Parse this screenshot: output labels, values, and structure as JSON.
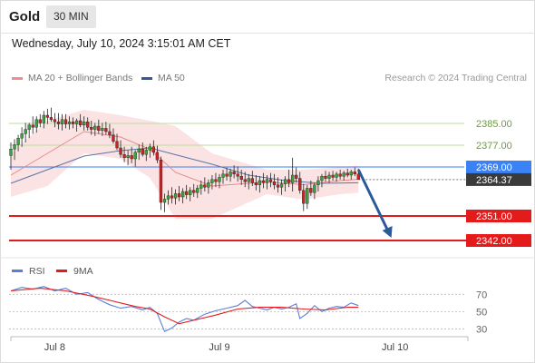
{
  "header": {
    "symbol": "Gold",
    "timeframe": "30 MIN"
  },
  "datetime": "Wednesday, July 10, 2024 3:15:01 AM CET",
  "legend": [
    {
      "label": "MA 20 + Bollinger Bands",
      "color": "#f08c8c"
    },
    {
      "label": "MA 50",
      "color": "#335a96"
    }
  ],
  "credit": "Research © 2024 Trading Central",
  "colors": {
    "pivot": "#3b82f6",
    "support": "#e31b1b",
    "resistance": "#b8dc9c",
    "last": "#3a3a3a",
    "arrow": "#2a5a9a",
    "up_candle": "#3aa33a",
    "down_candle": "#cc2222"
  },
  "chart_data": [
    {
      "type": "candlestick",
      "x_range": [
        0,
        115
      ],
      "ylim": [
        2337,
        2397
      ],
      "x_tick_labels": [
        {
          "i": 12,
          "label": "Jul 8"
        },
        {
          "i": 57,
          "label": "Jul 9"
        },
        {
          "i": 105,
          "label": "Jul 10"
        }
      ],
      "ohlc": [
        [
          2373.2,
          2378.0,
          2368.0,
          2375.6
        ],
        [
          2375.6,
          2379.2,
          2371.6,
          2377.2
        ],
        [
          2377.2,
          2380.8,
          2374.8,
          2379.6
        ],
        [
          2379.6,
          2383.6,
          2376.4,
          2381.2
        ],
        [
          2381.2,
          2385.2,
          2378.0,
          2382.8
        ],
        [
          2382.8,
          2385.2,
          2379.6,
          2384.4
        ],
        [
          2384.4,
          2387.6,
          2381.2,
          2383.6
        ],
        [
          2383.6,
          2387.6,
          2381.6,
          2386.4
        ],
        [
          2386.4,
          2388.4,
          2383.6,
          2385.2
        ],
        [
          2385.2,
          2389.6,
          2383.2,
          2388.0
        ],
        [
          2388.0,
          2390.4,
          2384.8,
          2387.2
        ],
        [
          2387.2,
          2390.8,
          2385.6,
          2386.4
        ],
        [
          2386.4,
          2388.8,
          2383.6,
          2385.6
        ],
        [
          2385.6,
          2388.8,
          2382.8,
          2384.8
        ],
        [
          2384.8,
          2388.4,
          2382.4,
          2386.4
        ],
        [
          2386.4,
          2388.4,
          2383.2,
          2384.8
        ],
        [
          2384.8,
          2387.6,
          2382.8,
          2385.6
        ],
        [
          2385.6,
          2387.2,
          2383.2,
          2384.8
        ],
        [
          2384.8,
          2386.8,
          2382.0,
          2386.0
        ],
        [
          2386.0,
          2388.4,
          2383.6,
          2384.4
        ],
        [
          2384.4,
          2387.6,
          2382.4,
          2385.6
        ],
        [
          2385.6,
          2387.2,
          2382.4,
          2383.6
        ],
        [
          2383.6,
          2386.0,
          2380.8,
          2382.8
        ],
        [
          2382.8,
          2385.2,
          2380.4,
          2384.0
        ],
        [
          2384.0,
          2386.4,
          2381.2,
          2382.4
        ],
        [
          2382.4,
          2385.2,
          2380.4,
          2383.2
        ],
        [
          2383.2,
          2385.6,
          2380.8,
          2382.0
        ],
        [
          2382.0,
          2384.8,
          2379.6,
          2380.8
        ],
        [
          2380.8,
          2383.2,
          2377.6,
          2378.4
        ],
        [
          2378.4,
          2381.2,
          2375.2,
          2376.0
        ],
        [
          2376.0,
          2378.8,
          2372.4,
          2373.6
        ],
        [
          2373.6,
          2376.4,
          2370.8,
          2372.4
        ],
        [
          2372.4,
          2375.2,
          2369.6,
          2373.2
        ],
        [
          2373.2,
          2376.4,
          2370.4,
          2372.0
        ],
        [
          2372.0,
          2375.2,
          2369.2,
          2374.4
        ],
        [
          2374.4,
          2377.2,
          2371.6,
          2375.6
        ],
        [
          2375.6,
          2378.0,
          2372.8,
          2373.6
        ],
        [
          2373.6,
          2376.4,
          2371.2,
          2375.2
        ],
        [
          2375.2,
          2377.6,
          2372.4,
          2376.4
        ],
        [
          2376.4,
          2378.8,
          2373.2,
          2374.4
        ],
        [
          2374.4,
          2376.8,
          2370.4,
          2371.6
        ],
        [
          2371.6,
          2372.8,
          2353.2,
          2356.0
        ],
        [
          2356.0,
          2359.2,
          2352.4,
          2357.2
        ],
        [
          2357.2,
          2360.4,
          2355.2,
          2358.4
        ],
        [
          2358.4,
          2361.6,
          2355.6,
          2357.6
        ],
        [
          2357.6,
          2360.8,
          2355.2,
          2359.2
        ],
        [
          2359.2,
          2362.0,
          2356.4,
          2358.0
        ],
        [
          2358.0,
          2361.2,
          2355.6,
          2360.0
        ],
        [
          2360.0,
          2362.4,
          2357.2,
          2358.8
        ],
        [
          2358.8,
          2361.6,
          2356.4,
          2360.4
        ],
        [
          2360.4,
          2362.8,
          2358.0,
          2359.6
        ],
        [
          2359.6,
          2362.4,
          2357.6,
          2361.2
        ],
        [
          2361.2,
          2364.0,
          2358.8,
          2362.4
        ],
        [
          2362.4,
          2365.2,
          2360.0,
          2361.6
        ],
        [
          2361.6,
          2364.4,
          2359.2,
          2363.2
        ],
        [
          2363.2,
          2366.0,
          2360.8,
          2364.4
        ],
        [
          2364.4,
          2366.8,
          2361.6,
          2363.6
        ],
        [
          2363.6,
          2366.4,
          2361.2,
          2365.2
        ],
        [
          2365.2,
          2368.0,
          2362.8,
          2366.4
        ],
        [
          2366.4,
          2368.8,
          2364.0,
          2365.6
        ],
        [
          2365.6,
          2368.4,
          2363.6,
          2367.2
        ],
        [
          2367.2,
          2369.6,
          2364.8,
          2366.4
        ],
        [
          2366.4,
          2369.2,
          2363.6,
          2365.6
        ],
        [
          2365.6,
          2368.0,
          2362.4,
          2364.4
        ],
        [
          2364.4,
          2367.2,
          2361.6,
          2363.6
        ],
        [
          2363.6,
          2366.4,
          2360.8,
          2364.8
        ],
        [
          2364.8,
          2367.6,
          2362.0,
          2363.2
        ],
        [
          2363.2,
          2366.0,
          2360.4,
          2362.4
        ],
        [
          2362.4,
          2365.6,
          2359.6,
          2364.0
        ],
        [
          2364.0,
          2366.8,
          2361.2,
          2363.2
        ],
        [
          2363.2,
          2366.0,
          2360.8,
          2364.4
        ],
        [
          2364.4,
          2366.8,
          2361.6,
          2363.6
        ],
        [
          2363.6,
          2366.4,
          2360.8,
          2362.4
        ],
        [
          2362.4,
          2365.2,
          2359.6,
          2361.6
        ],
        [
          2361.6,
          2364.4,
          2358.8,
          2362.8
        ],
        [
          2362.8,
          2365.6,
          2360.0,
          2364.4
        ],
        [
          2364.4,
          2368.0,
          2361.6,
          2363.2
        ],
        [
          2363.2,
          2372.4,
          2360.0,
          2366.0
        ],
        [
          2366.0,
          2368.8,
          2363.2,
          2364.8
        ],
        [
          2364.8,
          2367.2,
          2359.2,
          2360.4
        ],
        [
          2360.4,
          2362.8,
          2352.8,
          2355.6
        ],
        [
          2355.6,
          2362.4,
          2353.6,
          2361.2
        ],
        [
          2361.2,
          2364.0,
          2358.4,
          2359.6
        ],
        [
          2359.6,
          2363.2,
          2357.2,
          2362.4
        ],
        [
          2362.4,
          2365.6,
          2360.0,
          2364.0
        ],
        [
          2364.0,
          2366.4,
          2361.6,
          2365.6
        ],
        [
          2365.6,
          2367.6,
          2363.6,
          2364.8
        ],
        [
          2364.8,
          2367.2,
          2363.2,
          2366.0
        ],
        [
          2366.0,
          2367.6,
          2364.0,
          2365.2
        ],
        [
          2365.2,
          2367.2,
          2363.6,
          2366.4
        ],
        [
          2366.4,
          2368.0,
          2364.4,
          2365.6
        ],
        [
          2365.6,
          2367.6,
          2364.0,
          2366.8
        ],
        [
          2366.8,
          2368.4,
          2365.2,
          2366.0
        ],
        [
          2366.0,
          2368.0,
          2364.4,
          2367.2
        ],
        [
          2367.2,
          2368.8,
          2365.6,
          2366.4
        ],
        [
          2366.4,
          2368.4,
          2364.8,
          2364.4
        ]
      ],
      "bollinger": {
        "ma20": [
          [
            0,
            2366.0
          ],
          [
            10,
            2374.0
          ],
          [
            20,
            2382.0
          ],
          [
            30,
            2380.0
          ],
          [
            38,
            2375.5
          ],
          [
            45,
            2367.0
          ],
          [
            55,
            2362.0
          ],
          [
            70,
            2363.5
          ],
          [
            80,
            2362.5
          ],
          [
            90,
            2364.0
          ],
          [
            95,
            2364.5
          ]
        ],
        "upper": [
          [
            0,
            2374.0
          ],
          [
            10,
            2386.0
          ],
          [
            20,
            2390.0
          ],
          [
            30,
            2388.0
          ],
          [
            38,
            2386.0
          ],
          [
            45,
            2384.0
          ],
          [
            55,
            2374.0
          ],
          [
            70,
            2368.0
          ],
          [
            80,
            2368.0
          ],
          [
            90,
            2369.0
          ],
          [
            95,
            2369.5
          ]
        ],
        "lower": [
          [
            0,
            2358.0
          ],
          [
            10,
            2362.0
          ],
          [
            20,
            2374.0
          ],
          [
            30,
            2372.0
          ],
          [
            38,
            2365.0
          ],
          [
            45,
            2350.0
          ],
          [
            55,
            2350.0
          ],
          [
            70,
            2359.0
          ],
          [
            80,
            2357.0
          ],
          [
            90,
            2359.0
          ],
          [
            95,
            2359.5
          ]
        ]
      },
      "ma50": [
        [
          0,
          2363.0
        ],
        [
          10,
          2368.0
        ],
        [
          20,
          2373.0
        ],
        [
          30,
          2375.0
        ],
        [
          38,
          2376.0
        ],
        [
          45,
          2373.5
        ],
        [
          55,
          2370.0
        ],
        [
          65,
          2366.0
        ],
        [
          75,
          2364.0
        ],
        [
          85,
          2363.0
        ],
        [
          95,
          2363.2
        ]
      ],
      "levels": [
        {
          "value": 2385.0,
          "label": "2385.00",
          "kind": "resistance"
        },
        {
          "value": 2377.0,
          "label": "2377.00",
          "kind": "resistance"
        },
        {
          "value": 2369.0,
          "label": "2369.00",
          "kind": "pivot"
        },
        {
          "value": 2351.0,
          "label": "2351.00",
          "kind": "support"
        },
        {
          "value": 2342.0,
          "label": "2342.00",
          "kind": "support"
        }
      ],
      "last_price": {
        "value": 2364.37,
        "label": "2364.37"
      },
      "forecast_arrow": {
        "from": [
          95,
          2368.0
        ],
        "to": [
          104,
          2343.0
        ]
      }
    },
    {
      "type": "line",
      "ylim": [
        20,
        85
      ],
      "series": [
        {
          "name": "RSI",
          "color": "#5b7fd6",
          "values": [
            [
              0,
              74
            ],
            [
              3,
              78
            ],
            [
              6,
              76
            ],
            [
              9,
              79
            ],
            [
              12,
              74
            ],
            [
              15,
              77
            ],
            [
              18,
              70
            ],
            [
              21,
              72
            ],
            [
              24,
              64
            ],
            [
              27,
              58
            ],
            [
              30,
              54
            ],
            [
              33,
              56
            ],
            [
              36,
              52
            ],
            [
              38,
              55
            ],
            [
              40,
              48
            ],
            [
              42,
              27
            ],
            [
              44,
              31
            ],
            [
              46,
              38
            ],
            [
              48,
              42
            ],
            [
              50,
              40
            ],
            [
              53,
              47
            ],
            [
              56,
              51
            ],
            [
              59,
              54
            ],
            [
              62,
              57
            ],
            [
              64,
              63
            ],
            [
              66,
              56
            ],
            [
              68,
              54
            ],
            [
              70,
              52
            ],
            [
              72,
              55
            ],
            [
              74,
              53
            ],
            [
              76,
              55
            ],
            [
              78,
              59
            ],
            [
              79,
              42
            ],
            [
              81,
              48
            ],
            [
              83,
              57
            ],
            [
              85,
              50
            ],
            [
              87,
              54
            ],
            [
              89,
              56
            ],
            [
              91,
              55
            ],
            [
              93,
              60
            ],
            [
              95,
              57
            ]
          ]
        },
        {
          "name": "9MA",
          "color": "#e31b1b",
          "values": [
            [
              0,
              74
            ],
            [
              8,
              77
            ],
            [
              15,
              74
            ],
            [
              22,
              68
            ],
            [
              28,
              62
            ],
            [
              34,
              56
            ],
            [
              38,
              53
            ],
            [
              42,
              44
            ],
            [
              46,
              36
            ],
            [
              50,
              40
            ],
            [
              56,
              46
            ],
            [
              62,
              53
            ],
            [
              68,
              55
            ],
            [
              74,
              55
            ],
            [
              80,
              53
            ],
            [
              86,
              52
            ],
            [
              92,
              55
            ],
            [
              95,
              55
            ]
          ]
        }
      ],
      "y_ticks": [
        "70",
        "50",
        "30"
      ]
    }
  ]
}
